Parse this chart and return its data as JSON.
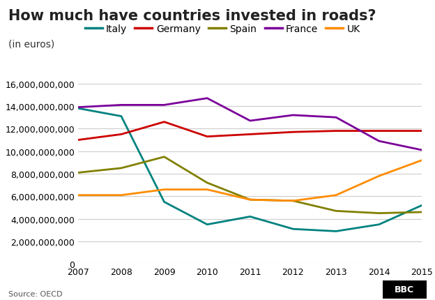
{
  "title": "How much have countries invested in roads?",
  "subtitle": "(in euros)",
  "source": "Source: OECD",
  "years": [
    2007,
    2008,
    2009,
    2010,
    2011,
    2012,
    2013,
    2014,
    2015
  ],
  "series": {
    "Italy": [
      13800000000,
      13100000000,
      5500000000,
      3500000000,
      4200000000,
      3100000000,
      2900000000,
      3500000000,
      5200000000
    ],
    "Germany": [
      11000000000,
      11500000000,
      12600000000,
      11300000000,
      11500000000,
      11700000000,
      11800000000,
      11800000000,
      11800000000
    ],
    "Spain": [
      8100000000,
      8500000000,
      9500000000,
      7200000000,
      5700000000,
      5600000000,
      4700000000,
      4500000000,
      4600000000
    ],
    "France": [
      13900000000,
      14100000000,
      14100000000,
      14700000000,
      12700000000,
      13200000000,
      13000000000,
      10900000000,
      10100000000
    ],
    "UK": [
      6100000000,
      6100000000,
      6600000000,
      6600000000,
      5700000000,
      5600000000,
      6100000000,
      7800000000,
      9200000000
    ]
  },
  "colors": {
    "Italy": "#00827F",
    "Germany": "#CC0000",
    "Spain": "#808000",
    "France": "#7B0099",
    "UK": "#FF8C00"
  },
  "ylim": [
    0,
    16000000000
  ],
  "yticks": [
    0,
    2000000000,
    4000000000,
    6000000000,
    8000000000,
    10000000000,
    12000000000,
    14000000000,
    16000000000
  ],
  "background_color": "#ffffff",
  "grid_color": "#cccccc",
  "title_fontsize": 15,
  "subtitle_fontsize": 10,
  "legend_fontsize": 10,
  "tick_fontsize": 9,
  "line_width": 2.0
}
